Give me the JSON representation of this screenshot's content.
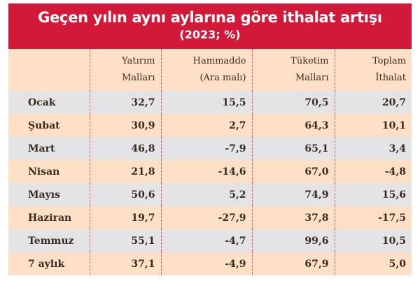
{
  "title": "Geçen yılın aynı aylarına göre ithalat artışı",
  "subtitle": "(2023; %)",
  "headers": [
    {
      "line1": "",
      "line2": ""
    },
    {
      "line1": "Yatırım",
      "line2": "Malları"
    },
    {
      "line1": "Hammadde",
      "line2": "(Ara malı)"
    },
    {
      "line1": "Tüketim",
      "line2": "Malları"
    },
    {
      "line1": "Toplam",
      "line2": "İthalat"
    }
  ],
  "rows": [
    {
      "month": "Ocak",
      "values": [
        "32,7",
        "15,5",
        "70,5",
        "20,7"
      ]
    },
    {
      "month": "Şubat",
      "values": [
        "30,9",
        "2,7",
        "64,3",
        "10,1"
      ]
    },
    {
      "month": "Mart",
      "values": [
        "46,8",
        "-7,9",
        "65,1",
        "3,4"
      ]
    },
    {
      "month": "Nisan",
      "values": [
        "21,8",
        "-14,6",
        "67,0",
        "-4,8"
      ]
    },
    {
      "month": "Mayıs",
      "values": [
        "50,6",
        "5,2",
        "74,9",
        "15,6"
      ]
    },
    {
      "month": "Haziran",
      "values": [
        "19,7",
        "-27,9",
        "37,8",
        "-17,5"
      ]
    },
    {
      "month": "Temmuz",
      "values": [
        "55,1",
        "-4,7",
        "99,6",
        "10,5"
      ]
    },
    {
      "month": "7 aylık",
      "values": [
        "37,1",
        "-4,9",
        "67,9",
        "5,0"
      ]
    }
  ],
  "colors": {
    "title_band": "#d3193a",
    "row_gray": "#e4e4e6",
    "row_peach": "#fde0c6",
    "divider": "#e0305a"
  },
  "chart_data": {
    "type": "table",
    "title": "Geçen yılın aynı aylarına göre ithalat artışı",
    "subtitle": "(2023; %)",
    "columns": [
      "",
      "Yatırım Malları",
      "Hammadde (Ara malı)",
      "Tüketim Malları",
      "Toplam İthalat"
    ],
    "categories": [
      "Ocak",
      "Şubat",
      "Mart",
      "Nisan",
      "Mayıs",
      "Haziran",
      "Temmuz",
      "7 aylık"
    ],
    "series": [
      {
        "name": "Yatırım Malları",
        "values": [
          32.7,
          30.9,
          46.8,
          21.8,
          50.6,
          19.7,
          55.1,
          37.1
        ]
      },
      {
        "name": "Hammadde (Ara malı)",
        "values": [
          15.5,
          2.7,
          -7.9,
          -14.6,
          5.2,
          -27.9,
          -4.7,
          -4.9
        ]
      },
      {
        "name": "Tüketim Malları",
        "values": [
          70.5,
          64.3,
          65.1,
          67.0,
          74.9,
          37.8,
          99.6,
          67.9
        ]
      },
      {
        "name": "Toplam İthalat",
        "values": [
          20.7,
          10.1,
          3.4,
          -4.8,
          15.6,
          -17.5,
          10.5,
          5.0
        ]
      }
    ]
  }
}
